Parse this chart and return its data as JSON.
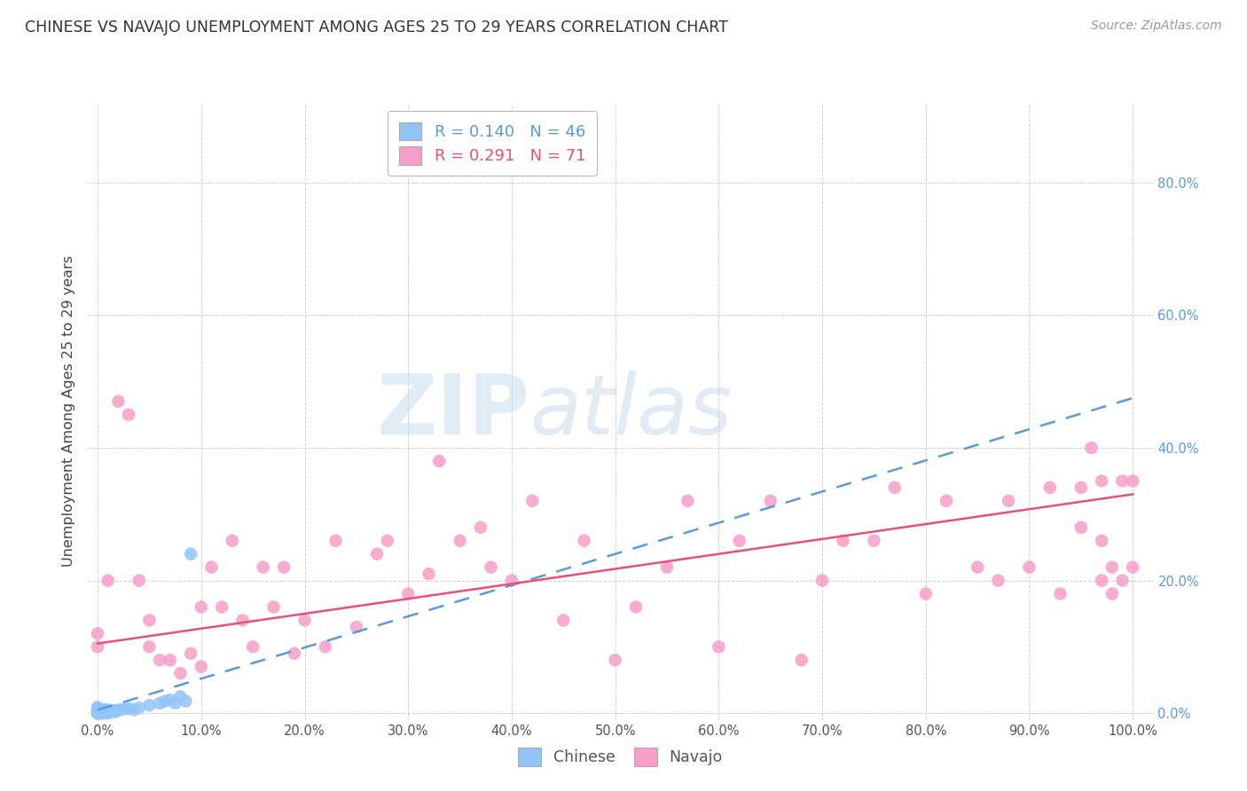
{
  "title": "CHINESE VS NAVAJO UNEMPLOYMENT AMONG AGES 25 TO 29 YEARS CORRELATION CHART",
  "source": "Source: ZipAtlas.com",
  "ylabel": "Unemployment Among Ages 25 to 29 years",
  "xlim": [
    -0.01,
    1.02
  ],
  "ylim": [
    -0.01,
    0.92
  ],
  "xticks": [
    0.0,
    0.1,
    0.2,
    0.3,
    0.4,
    0.5,
    0.6,
    0.7,
    0.8,
    0.9,
    1.0
  ],
  "yticks": [
    0.0,
    0.2,
    0.4,
    0.6,
    0.8
  ],
  "xtick_labels": [
    "0.0%",
    "10.0%",
    "20.0%",
    "30.0%",
    "40.0%",
    "50.0%",
    "60.0%",
    "70.0%",
    "80.0%",
    "90.0%",
    "100.0%"
  ],
  "ytick_labels": [
    "0.0%",
    "20.0%",
    "40.0%",
    "60.0%",
    "80.0%"
  ],
  "chinese_R": "0.140",
  "chinese_N": "46",
  "navajo_R": "0.291",
  "navajo_N": "71",
  "chinese_color": "#92c5f7",
  "navajo_color": "#f79ec8",
  "chinese_line_color": "#5b9bd5",
  "navajo_line_color": "#e8507a",
  "chinese_line_intercept": 0.005,
  "chinese_line_slope": 0.47,
  "navajo_line_intercept": 0.105,
  "navajo_line_slope": 0.225,
  "watermark_zip": "ZIP",
  "watermark_atlas": "atlas",
  "legend_labels": [
    "Chinese",
    "Navajo"
  ],
  "chinese_x": [
    0.0,
    0.0,
    0.0,
    0.0,
    0.0,
    0.0,
    0.0,
    0.0,
    0.0,
    0.0,
    0.002,
    0.002,
    0.002,
    0.003,
    0.003,
    0.004,
    0.004,
    0.004,
    0.005,
    0.005,
    0.005,
    0.006,
    0.007,
    0.007,
    0.008,
    0.008,
    0.01,
    0.01,
    0.01,
    0.012,
    0.015,
    0.016,
    0.018,
    0.02,
    0.025,
    0.03,
    0.035,
    0.04,
    0.05,
    0.06,
    0.065,
    0.07,
    0.075,
    0.08,
    0.085,
    0.09
  ],
  "chinese_y": [
    0.0,
    0.0,
    0.0,
    0.002,
    0.003,
    0.004,
    0.005,
    0.006,
    0.007,
    0.009,
    0.0,
    0.002,
    0.004,
    0.001,
    0.003,
    0.0,
    0.002,
    0.004,
    0.0,
    0.002,
    0.005,
    0.002,
    0.001,
    0.004,
    0.002,
    0.005,
    0.0,
    0.002,
    0.005,
    0.003,
    0.004,
    0.002,
    0.003,
    0.005,
    0.006,
    0.007,
    0.005,
    0.008,
    0.012,
    0.015,
    0.018,
    0.02,
    0.015,
    0.025,
    0.018,
    0.24
  ],
  "navajo_x": [
    0.0,
    0.0,
    0.01,
    0.02,
    0.03,
    0.04,
    0.05,
    0.05,
    0.06,
    0.07,
    0.08,
    0.09,
    0.1,
    0.1,
    0.11,
    0.12,
    0.13,
    0.14,
    0.15,
    0.16,
    0.17,
    0.18,
    0.19,
    0.2,
    0.22,
    0.23,
    0.25,
    0.27,
    0.28,
    0.3,
    0.32,
    0.33,
    0.35,
    0.37,
    0.38,
    0.4,
    0.42,
    0.45,
    0.47,
    0.5,
    0.52,
    0.55,
    0.57,
    0.6,
    0.62,
    0.65,
    0.68,
    0.7,
    0.72,
    0.75,
    0.77,
    0.8,
    0.82,
    0.85,
    0.87,
    0.88,
    0.9,
    0.92,
    0.93,
    0.95,
    0.95,
    0.96,
    0.97,
    0.97,
    0.97,
    0.98,
    0.98,
    0.99,
    0.99,
    1.0,
    1.0
  ],
  "navajo_y": [
    0.1,
    0.12,
    0.2,
    0.47,
    0.45,
    0.2,
    0.1,
    0.14,
    0.08,
    0.08,
    0.06,
    0.09,
    0.07,
    0.16,
    0.22,
    0.16,
    0.26,
    0.14,
    0.1,
    0.22,
    0.16,
    0.22,
    0.09,
    0.14,
    0.1,
    0.26,
    0.13,
    0.24,
    0.26,
    0.18,
    0.21,
    0.38,
    0.26,
    0.28,
    0.22,
    0.2,
    0.32,
    0.14,
    0.26,
    0.08,
    0.16,
    0.22,
    0.32,
    0.1,
    0.26,
    0.32,
    0.08,
    0.2,
    0.26,
    0.26,
    0.34,
    0.18,
    0.32,
    0.22,
    0.2,
    0.32,
    0.22,
    0.34,
    0.18,
    0.28,
    0.34,
    0.4,
    0.2,
    0.26,
    0.35,
    0.18,
    0.22,
    0.2,
    0.35,
    0.22,
    0.35
  ]
}
